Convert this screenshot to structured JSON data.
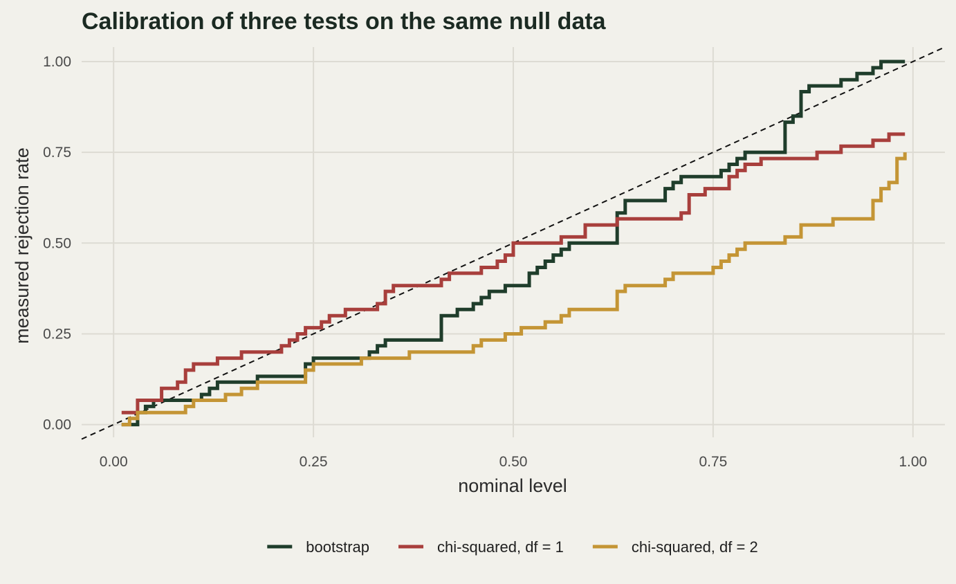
{
  "chart_data": {
    "type": "line",
    "title": "Calibration of three tests on the same null data",
    "xlabel": "nominal level",
    "ylabel": "measured rejection rate",
    "xlim": [
      -0.04,
      1.04
    ],
    "ylim": [
      -0.035,
      1.04
    ],
    "xticks": [
      0.0,
      0.25,
      0.5,
      0.75,
      1.0
    ],
    "xtick_labels": [
      "0.00",
      "0.25",
      "0.50",
      "0.75",
      "1.00"
    ],
    "yticks": [
      0.0,
      0.25,
      0.5,
      0.75,
      1.0
    ],
    "ytick_labels": [
      "0.00",
      "0.25",
      "0.50",
      "0.75",
      "1.00"
    ],
    "grid": true,
    "legend_position": "bottom",
    "reference_line": {
      "slope": 1,
      "intercept": 0,
      "style": "dashed",
      "color": "#111111"
    },
    "series": [
      {
        "name": "bootstrap",
        "color": "#1f3d2b",
        "step": true,
        "x": [
          0.01,
          0.02,
          0.03,
          0.04,
          0.05,
          0.11,
          0.12,
          0.13,
          0.18,
          0.24,
          0.25,
          0.32,
          0.33,
          0.34,
          0.41,
          0.42,
          0.43,
          0.45,
          0.46,
          0.47,
          0.49,
          0.52,
          0.53,
          0.54,
          0.55,
          0.56,
          0.57,
          0.63,
          0.64,
          0.69,
          0.7,
          0.71,
          0.76,
          0.77,
          0.78,
          0.79,
          0.84,
          0.85,
          0.86,
          0.87,
          0.91,
          0.93,
          0.95,
          0.96,
          0.97,
          0.99
        ],
        "y": [
          0.0,
          0.0,
          0.033,
          0.05,
          0.067,
          0.083,
          0.1,
          0.117,
          0.133,
          0.167,
          0.183,
          0.2,
          0.217,
          0.233,
          0.3,
          0.3,
          0.317,
          0.333,
          0.35,
          0.367,
          0.383,
          0.417,
          0.433,
          0.45,
          0.467,
          0.483,
          0.5,
          0.583,
          0.617,
          0.65,
          0.667,
          0.683,
          0.7,
          0.717,
          0.733,
          0.75,
          0.833,
          0.85,
          0.917,
          0.933,
          0.95,
          0.967,
          0.983,
          1.0,
          1.0,
          1.0
        ]
      },
      {
        "name": "chi-squared, df = 1",
        "color": "#a83f3c",
        "step": true,
        "x": [
          0.01,
          0.03,
          0.05,
          0.06,
          0.08,
          0.09,
          0.1,
          0.13,
          0.16,
          0.21,
          0.22,
          0.23,
          0.24,
          0.26,
          0.27,
          0.29,
          0.33,
          0.34,
          0.35,
          0.41,
          0.42,
          0.46,
          0.48,
          0.49,
          0.5,
          0.56,
          0.59,
          0.63,
          0.71,
          0.72,
          0.74,
          0.77,
          0.78,
          0.79,
          0.81,
          0.83,
          0.88,
          0.91,
          0.95,
          0.97,
          0.99
        ],
        "y": [
          0.033,
          0.067,
          0.067,
          0.1,
          0.117,
          0.15,
          0.167,
          0.183,
          0.2,
          0.217,
          0.233,
          0.25,
          0.267,
          0.283,
          0.3,
          0.317,
          0.333,
          0.367,
          0.383,
          0.4,
          0.417,
          0.433,
          0.45,
          0.467,
          0.5,
          0.517,
          0.55,
          0.567,
          0.583,
          0.633,
          0.65,
          0.683,
          0.7,
          0.717,
          0.733,
          0.733,
          0.75,
          0.767,
          0.783,
          0.8,
          0.8
        ]
      },
      {
        "name": "chi-squared, df = 2",
        "color": "#c49535",
        "step": true,
        "x": [
          0.01,
          0.02,
          0.03,
          0.09,
          0.1,
          0.14,
          0.15,
          0.16,
          0.18,
          0.24,
          0.25,
          0.31,
          0.32,
          0.37,
          0.45,
          0.46,
          0.47,
          0.49,
          0.51,
          0.54,
          0.56,
          0.57,
          0.63,
          0.64,
          0.69,
          0.7,
          0.75,
          0.76,
          0.77,
          0.78,
          0.79,
          0.84,
          0.86,
          0.9,
          0.95,
          0.96,
          0.97,
          0.98,
          0.99
        ],
        "y": [
          0.0,
          0.017,
          0.033,
          0.05,
          0.067,
          0.083,
          0.083,
          0.1,
          0.117,
          0.15,
          0.167,
          0.183,
          0.183,
          0.2,
          0.217,
          0.233,
          0.233,
          0.25,
          0.267,
          0.283,
          0.3,
          0.317,
          0.367,
          0.383,
          0.4,
          0.417,
          0.433,
          0.45,
          0.467,
          0.483,
          0.5,
          0.517,
          0.55,
          0.567,
          0.617,
          0.65,
          0.667,
          0.733,
          0.75
        ]
      }
    ]
  }
}
